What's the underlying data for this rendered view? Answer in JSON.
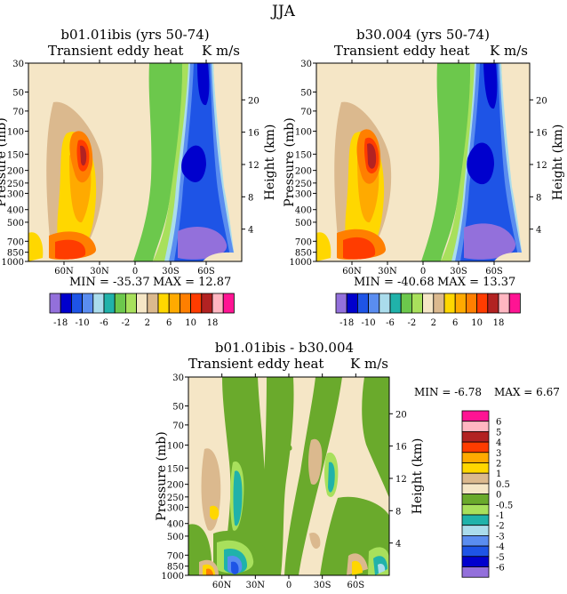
{
  "page_title": "JJA",
  "chart_data": [
    {
      "type": "heatmap",
      "title": "b01.01ibis (yrs 50-74)",
      "subtitle_left": "Transient eddy heat",
      "subtitle_right": "K m/s",
      "ylabel": "Pressure (mb)",
      "ylabel_right": "Height (km)",
      "x_ticks": [
        "60N",
        "30N",
        "0",
        "30S",
        "60S"
      ],
      "y_ticks": [
        "30",
        "50",
        "70",
        "100",
        "150",
        "200",
        "250",
        "300",
        "400",
        "500",
        "700",
        "850",
        "1000"
      ],
      "height_ticks": [
        "20",
        "16",
        "12",
        "8",
        "4"
      ],
      "min_label": "MIN = -35.37",
      "max_label": "MAX = 12.87",
      "field": {
        "max": 12.87,
        "max_location": "60N, 150-200 mb",
        "min": -35.37,
        "min_location": "60S, 700-850 mb"
      }
    },
    {
      "type": "heatmap",
      "title": "b30.004 (yrs 50-74)",
      "subtitle_left": "Transient eddy heat",
      "subtitle_right": "K m/s",
      "ylabel": "Pressure (mb)",
      "ylabel_right": "Height (km)",
      "x_ticks": [
        "60N",
        "30N",
        "0",
        "30S",
        "60S"
      ],
      "y_ticks": [
        "30",
        "50",
        "70",
        "100",
        "150",
        "200",
        "250",
        "300",
        "400",
        "500",
        "700",
        "850",
        "1000"
      ],
      "height_ticks": [
        "20",
        "16",
        "12",
        "8",
        "4"
      ],
      "min_label": "MIN = -40.68",
      "max_label": "MAX = 13.37",
      "field": {
        "max": 13.37,
        "max_location": "60N, 150-200 mb",
        "min": -40.68,
        "min_location": "60S, 700-850 mb"
      }
    },
    {
      "type": "heatmap",
      "title": "b01.01ibis - b30.004",
      "subtitle_left": "Transient eddy heat",
      "subtitle_right": "K m/s",
      "ylabel": "Pressure (mb)",
      "ylabel_right": "Height (km)",
      "x_ticks": [
        "60N",
        "30N",
        "0",
        "30S",
        "60S"
      ],
      "y_ticks": [
        "30",
        "50",
        "70",
        "100",
        "150",
        "200",
        "250",
        "300",
        "400",
        "500",
        "700",
        "850",
        "1000"
      ],
      "height_ticks": [
        "20",
        "16",
        "12",
        "8",
        "4"
      ],
      "min_label": "MIN = -6.78",
      "max_label": "MAX = 6.67",
      "field": {
        "max": 6.67,
        "min": -6.78
      }
    }
  ],
  "colorbar_abs": {
    "labels": [
      "-18",
      "-10",
      "-6",
      "-2",
      "2",
      "6",
      "10",
      "18"
    ],
    "colors": [
      "#9370db",
      "#0000cd",
      "#1e54e6",
      "#5a8df0",
      "#aadcec",
      "#20b2aa",
      "#6cc84c",
      "#a8e05c",
      "#f5e6c6",
      "#dbb98e",
      "#ffd700",
      "#ffaa00",
      "#ff7f00",
      "#ff3c00",
      "#b22222",
      "#ffb6c1",
      "#ff1493"
    ]
  },
  "colorbar_diff": {
    "labels": [
      "6",
      "5",
      "4",
      "3",
      "2",
      "1",
      "0.5",
      "0",
      "-0.5",
      "-1",
      "-2",
      "-3",
      "-4",
      "-5",
      "-6"
    ],
    "colors": [
      "#ff1493",
      "#ffb6c1",
      "#b22222",
      "#ff3c00",
      "#ffaa00",
      "#ffd700",
      "#dbb98e",
      "#f5e6c6",
      "#6aaa2c",
      "#a8e05c",
      "#20b2aa",
      "#aadcec",
      "#5a8df0",
      "#1e54e6",
      "#0000cd",
      "#9370db"
    ]
  }
}
